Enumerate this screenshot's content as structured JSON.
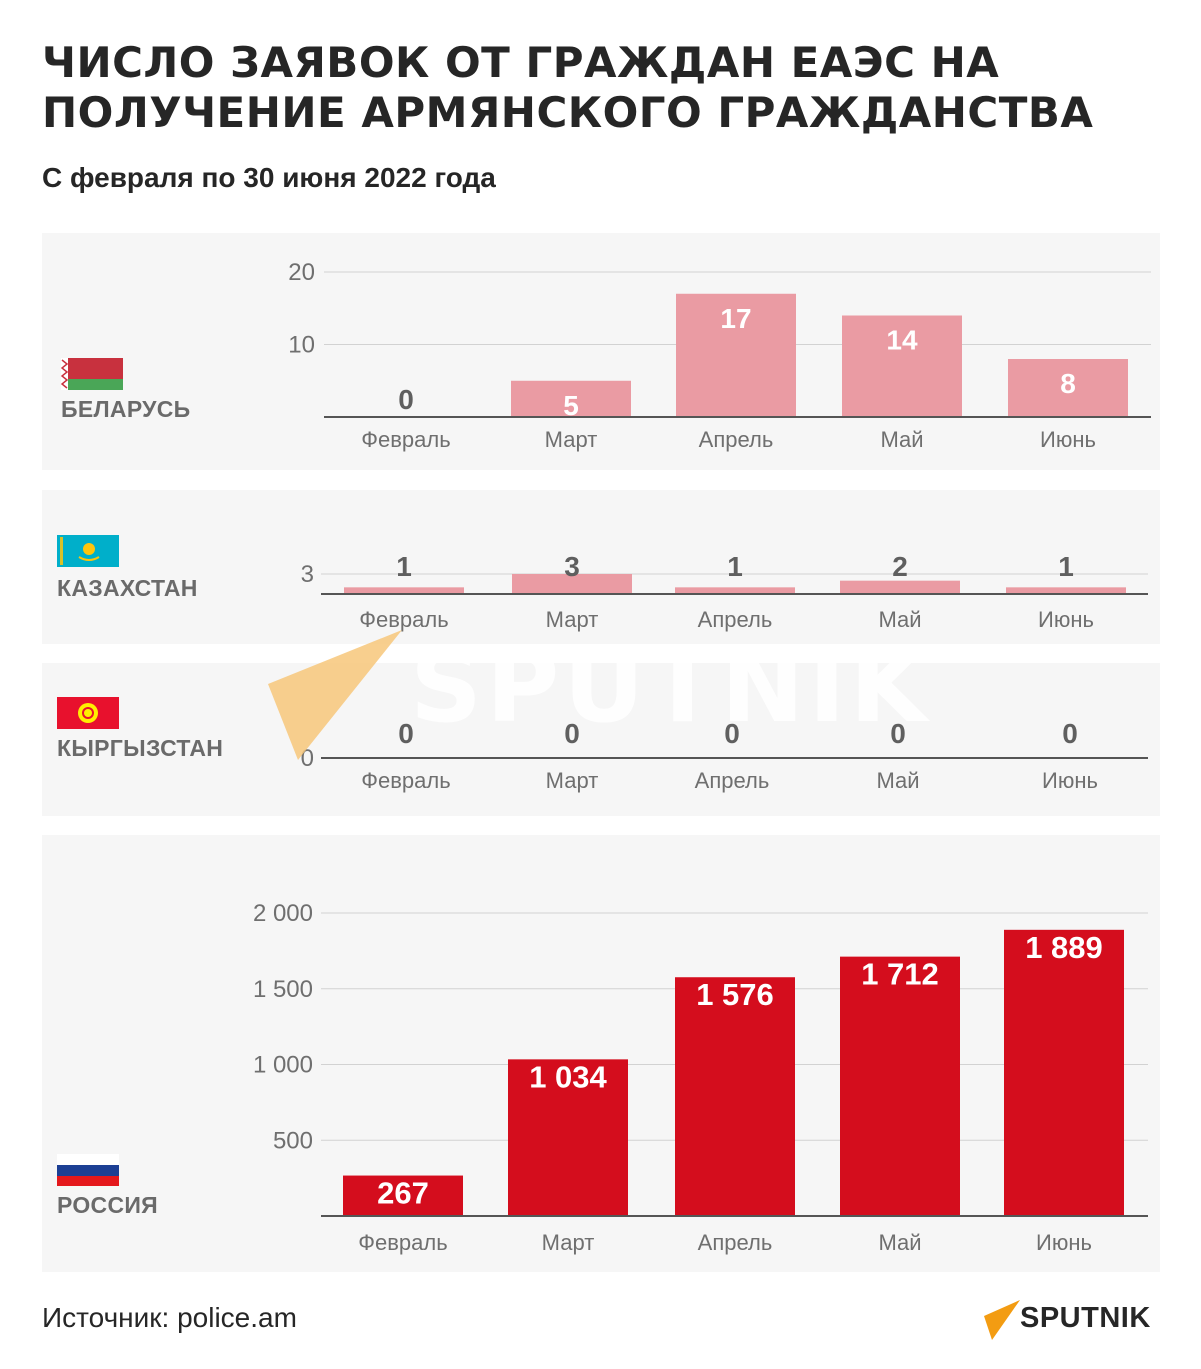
{
  "header": {
    "title": "ЧИСЛО ЗАЯВОК ОТ ГРАЖДАН ЕАЭС НА ПОЛУЧЕНИЕ АРМЯНСКОГО ГРАЖДАНСТВА",
    "subtitle": "С февраля по 30 июня 2022 года"
  },
  "footer": {
    "source": "Источник: police.am",
    "brand": "SPUTNIK",
    "watermark": "SPUTNIK"
  },
  "colors": {
    "panel_bg": "#f6f6f6",
    "bar_light": "#ea9ba3",
    "bar_dark": "#d40d1d",
    "label_dark": "#5f5f5f",
    "label_light": "#ffffff",
    "axis_text": "#6f6f6f",
    "brand_orange": "#f39c12"
  },
  "icons": {
    "belarus": "belarus-flag-icon",
    "kazakhstan": "kazakhstan-flag-icon",
    "kyrgyzstan": "kyrgyzstan-flag-icon",
    "russia": "russia-flag-icon",
    "brand": "sputnik-logo-icon"
  },
  "panels": {
    "belarus": {
      "country": "БЕЛАРУСЬ"
    },
    "kazakhstan": {
      "country": "КАЗАХСТАН"
    },
    "kyrgyzstan": {
      "country": "КЫРГЫЗСТАН"
    },
    "russia": {
      "country": "РОССИЯ"
    }
  },
  "chart_data": [
    {
      "type": "bar",
      "id": "belarus",
      "categories": [
        "Февраль",
        "Март",
        "Апрель",
        "Май",
        "Июнь"
      ],
      "values": [
        0,
        5,
        17,
        14,
        8
      ],
      "value_labels": [
        "0",
        "5",
        "17",
        "14",
        "8"
      ],
      "ylim": [
        0,
        20
      ],
      "yticks": [
        10,
        20
      ],
      "ytick_labels": [
        "10",
        "20"
      ],
      "grid": true
    },
    {
      "type": "bar",
      "id": "kazakhstan",
      "categories": [
        "Февраль",
        "Март",
        "Апрель",
        "Май",
        "Июнь"
      ],
      "values": [
        1,
        3,
        1,
        2,
        1
      ],
      "value_labels": [
        "1",
        "3",
        "1",
        "2",
        "1"
      ],
      "ylim": [
        0,
        3
      ],
      "yticks": [
        3
      ],
      "ytick_labels": [
        "3"
      ],
      "grid": true
    },
    {
      "type": "bar",
      "id": "kyrgyzstan",
      "categories": [
        "Февраль",
        "Март",
        "Апрель",
        "Май",
        "Июнь"
      ],
      "values": [
        0,
        0,
        0,
        0,
        0
      ],
      "value_labels": [
        "0",
        "0",
        "0",
        "0",
        "0"
      ],
      "ylim": [
        0,
        1
      ],
      "yticks": [
        0
      ],
      "ytick_labels": [
        "0"
      ],
      "grid": false
    },
    {
      "type": "bar",
      "id": "russia",
      "categories": [
        "Февраль",
        "Март",
        "Апрель",
        "Май",
        "Июнь"
      ],
      "values": [
        267,
        1034,
        1576,
        1712,
        1889
      ],
      "value_labels": [
        "267",
        "1 034",
        "1 576",
        "1 712",
        "1 889"
      ],
      "ylim": [
        0,
        2000
      ],
      "yticks": [
        500,
        1000,
        1500,
        2000
      ],
      "ytick_labels": [
        "500",
        "1 000",
        "1 500",
        "2 000"
      ],
      "grid": true
    }
  ]
}
